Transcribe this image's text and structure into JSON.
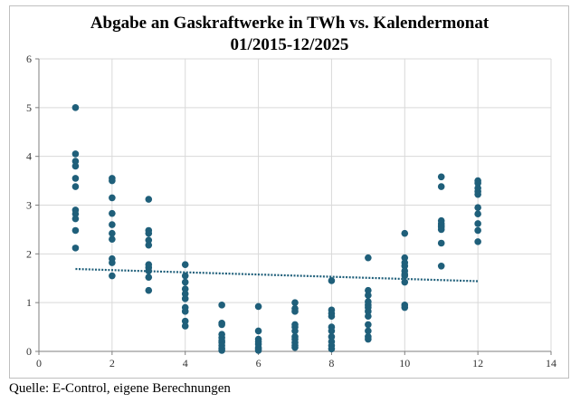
{
  "source_note": "Quelle: E-Control, eigene Berechnungen",
  "chart_data": {
    "type": "scatter",
    "title": "Abgabe an Gaskraftwerke in TWh vs. Kalendermonat",
    "subtitle": "01/2015-12/2025",
    "xlabel": "",
    "ylabel": "",
    "xlim": [
      0,
      14
    ],
    "ylim": [
      0,
      6
    ],
    "x_ticks": [
      0,
      2,
      4,
      6,
      8,
      10,
      12,
      14
    ],
    "y_ticks": [
      0,
      1,
      2,
      3,
      4,
      5,
      6
    ],
    "grid": true,
    "legend": "none",
    "colors": {
      "points": "#1f5f7a",
      "trend": "#1f5f7a",
      "grid": "#d9d9d9"
    },
    "points_by_month": {
      "1": [
        5.0,
        4.05,
        3.9,
        3.8,
        3.55,
        3.38,
        2.9,
        2.82,
        2.72,
        2.48,
        2.12
      ],
      "2": [
        3.55,
        3.5,
        3.15,
        2.83,
        2.6,
        2.42,
        2.3,
        1.9,
        1.82,
        1.55
      ],
      "3": [
        3.12,
        2.48,
        2.42,
        2.28,
        2.18,
        1.78,
        1.72,
        1.65,
        1.52,
        1.25
      ],
      "4": [
        1.78,
        1.55,
        1.42,
        1.28,
        1.18,
        1.08,
        0.9,
        0.82,
        0.62,
        0.52
      ],
      "5": [
        0.95,
        0.58,
        0.55,
        0.35,
        0.28,
        0.22,
        0.18,
        0.12,
        0.06,
        0.02
      ],
      "6": [
        0.92,
        0.42,
        0.25,
        0.2,
        0.15,
        0.08,
        0.05,
        0.02
      ],
      "7": [
        1.0,
        0.88,
        0.82,
        0.55,
        0.5,
        0.42,
        0.3,
        0.25,
        0.18,
        0.12,
        0.08
      ],
      "8": [
        1.45,
        0.85,
        0.78,
        0.72,
        0.5,
        0.42,
        0.3,
        0.2,
        0.12,
        0.05
      ],
      "9": [
        1.92,
        1.25,
        1.15,
        1.02,
        0.95,
        0.9,
        0.82,
        0.72,
        0.55,
        0.42,
        0.3,
        0.25
      ],
      "10": [
        2.42,
        1.92,
        1.82,
        1.75,
        1.65,
        1.58,
        1.55,
        1.42,
        0.95,
        0.9
      ],
      "11": [
        3.58,
        3.38,
        2.68,
        2.62,
        2.58,
        2.55,
        2.5,
        2.22,
        1.75
      ],
      "12": [
        3.5,
        3.45,
        3.35,
        3.28,
        3.22,
        2.95,
        2.82,
        2.62,
        2.48,
        2.25
      ]
    },
    "trendline": {
      "style": "dotted",
      "x": [
        1,
        12
      ],
      "y": [
        1.69,
        1.44
      ]
    }
  }
}
